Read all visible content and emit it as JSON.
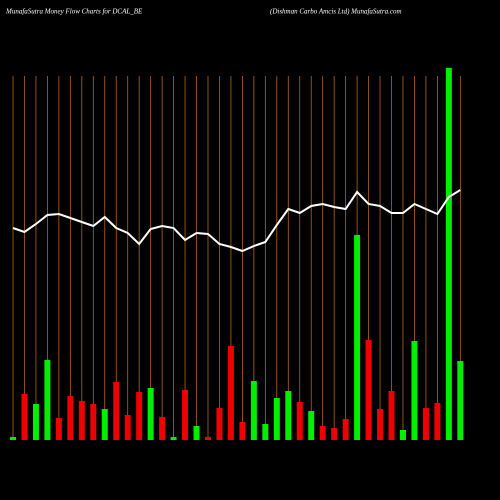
{
  "chart_data": {
    "type": "bar",
    "title": "MunafaSutra  Money Flow  Charts for DCAL_BE",
    "subtitle": "(Dishman  Carbo  Amcis Ltd) MunafaSutra.com",
    "categories": [
      null,
      null,
      null,
      null,
      null,
      null,
      null,
      null,
      null,
      null,
      null,
      null,
      null,
      null,
      null,
      null,
      null,
      null,
      null,
      null,
      null,
      null,
      null,
      null,
      null,
      null,
      null,
      null,
      null,
      null,
      null,
      null,
      null,
      null,
      null,
      null,
      null,
      null,
      null,
      null
    ],
    "values": [
      3,
      46,
      36,
      80,
      22,
      44,
      39,
      36,
      31,
      58,
      25,
      48,
      52,
      23,
      3,
      50,
      14,
      3,
      32,
      94,
      18,
      59,
      16,
      42,
      49,
      38,
      29,
      14,
      12,
      21,
      205,
      100,
      31,
      49,
      10,
      99,
      32,
      37,
      372,
      79
    ],
    "colors": [
      "#00ee00",
      "#ee0000",
      "#00ee00",
      "#00ee00",
      "#ee0000",
      "#ee0000",
      "#ee0000",
      "#ee0000",
      "#00ee00",
      "#ee0000",
      "#ee0000",
      "#ee0000",
      "#00ee00",
      "#ee0000",
      "#00ee00",
      "#ee0000",
      "#00ee00",
      "#ee0000",
      "#ee0000",
      "#ee0000",
      "#ee0000",
      "#00ee00",
      "#00ee00",
      "#00ee00",
      "#00ee00",
      "#ee0000",
      "#00ee00",
      "#ee0000",
      "#ee0000",
      "#ee0000",
      "#00ee00",
      "#ee0000",
      "#ee0000",
      "#ee0000",
      "#00ee00",
      "#00ee00",
      "#ee0000",
      "#ee0000",
      "#00ee00",
      "#00ee00"
    ],
    "line": {
      "color": "#ffffff",
      "values": [
        212,
        208,
        216,
        225,
        226,
        222,
        218,
        214,
        223,
        212,
        207,
        196,
        211,
        214,
        212,
        200,
        207,
        206,
        196,
        193,
        189,
        194,
        198,
        215,
        231,
        227,
        234,
        236,
        233,
        231,
        248,
        236,
        234,
        227,
        227,
        236,
        231,
        226,
        243,
        250
      ]
    },
    "ylim": [
      0,
      372
    ],
    "grid_color": "#b5651d"
  }
}
